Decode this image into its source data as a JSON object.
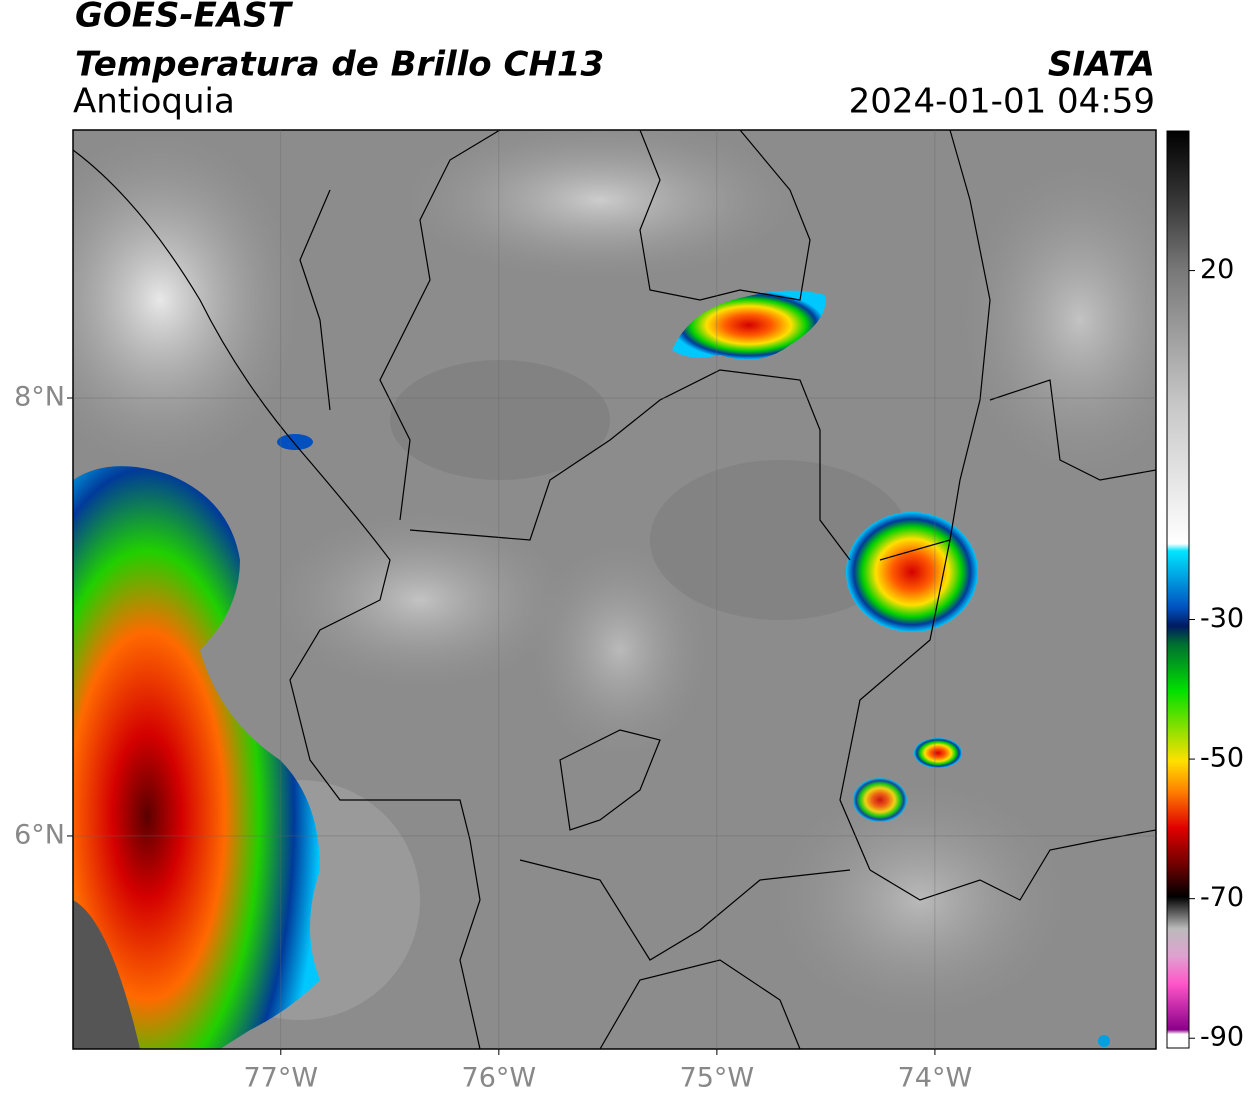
{
  "header": {
    "title": "GOES-EAST",
    "product": "Temperatura de Brillo CH13",
    "region": "Antioquia",
    "source": "SIATA",
    "datetime": "2024-01-01 04:59"
  },
  "map": {
    "lon_range": [
      -77.953,
      -72.986
    ],
    "lat_range": [
      5.027,
      9.224
    ],
    "lon_ticks": [
      {
        "value": -77,
        "label": "77°W"
      },
      {
        "value": -76,
        "label": "76°W"
      },
      {
        "value": -75,
        "label": "75°W"
      },
      {
        "value": -74,
        "label": "74°W"
      }
    ],
    "lat_ticks": [
      {
        "value": 8,
        "label": "8°N"
      },
      {
        "value": 6,
        "label": "6°N"
      }
    ]
  },
  "colorbar": {
    "lim": [
      -91.4,
      40
    ],
    "ticks": [
      20,
      -30,
      -50,
      -70,
      -90
    ]
  }
}
